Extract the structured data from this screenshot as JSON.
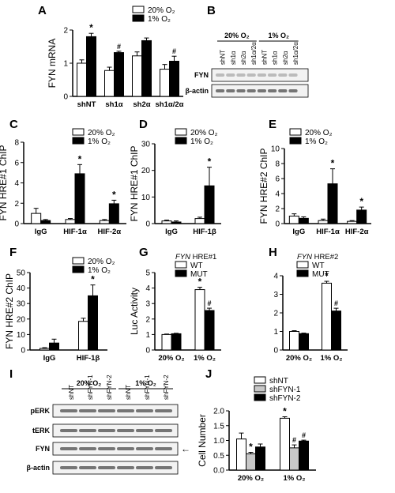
{
  "chart_data": [
    {
      "type": "bar",
      "letter": "A",
      "ylabel": "FYN mRNA",
      "ylim": [
        0,
        2
      ],
      "yticks": [
        "0",
        "1",
        "2"
      ],
      "categories": [
        "shNT",
        "sh1α",
        "sh2α",
        "sh1α/2α"
      ],
      "series": [
        {
          "name": "20% O₂",
          "values": [
            1.0,
            0.78,
            1.22,
            0.82
          ],
          "errors": [
            0.1,
            0.1,
            0.12,
            0.14
          ]
        },
        {
          "name": "1% O₂",
          "values": [
            1.8,
            1.32,
            1.68,
            1.06
          ],
          "errors": [
            0.1,
            0.04,
            0.08,
            0.15
          ]
        }
      ],
      "annotations": [
        {
          "cat": 0,
          "series": 1,
          "text": "*"
        },
        {
          "cat": 1,
          "series": 1,
          "text": "#"
        },
        {
          "cat": 3,
          "series": 1,
          "text": "#"
        }
      ],
      "legend": "top-right"
    },
    {
      "type": "bar",
      "letter": "C",
      "ylabel": "FYN HRE#1 ChIP",
      "ylim": [
        0,
        8
      ],
      "yticks": [
        "0",
        "2",
        "4",
        "6",
        "8"
      ],
      "categories": [
        "IgG",
        "HIF-1α",
        "HIF-2α"
      ],
      "series": [
        {
          "name": "20% O₂",
          "values": [
            1.0,
            0.4,
            0.3
          ],
          "errors": [
            0.5,
            0.1,
            0.1
          ]
        },
        {
          "name": "1% O₂",
          "values": [
            0.3,
            4.9,
            1.95
          ],
          "errors": [
            0.1,
            0.9,
            0.35
          ]
        }
      ],
      "annotations": [
        {
          "cat": 1,
          "series": 1,
          "text": "*"
        },
        {
          "cat": 2,
          "series": 1,
          "text": "*"
        }
      ],
      "legend": "top-right"
    },
    {
      "type": "bar",
      "letter": "D",
      "ylabel": "FYN HRE#1 ChIP",
      "ylim": [
        0,
        30
      ],
      "yticks": [
        "0",
        "10",
        "20",
        "30"
      ],
      "categories": [
        "IgG",
        "HIF-1β"
      ],
      "series": [
        {
          "name": "20% O₂",
          "values": [
            1.0,
            1.9
          ],
          "errors": [
            0.3,
            0.5
          ]
        },
        {
          "name": "1% O₂",
          "values": [
            0.6,
            14.2
          ],
          "errors": [
            0.4,
            7.0
          ]
        }
      ],
      "annotations": [
        {
          "cat": 1,
          "series": 1,
          "text": "*"
        }
      ],
      "legend": "top-right"
    },
    {
      "type": "bar",
      "letter": "E",
      "ylabel": "FYN HRE#2 ChIP",
      "ylim": [
        0,
        10
      ],
      "yticks": [
        "0",
        "2",
        "4",
        "6",
        "8",
        "10"
      ],
      "categories": [
        "IgG",
        "HIF-1α",
        "HIF-2α"
      ],
      "series": [
        {
          "name": "20% O₂",
          "values": [
            1.0,
            0.4,
            0.3
          ],
          "errors": [
            0.3,
            0.2,
            0.1
          ]
        },
        {
          "name": "1% O₂",
          "values": [
            0.7,
            5.3,
            1.8
          ],
          "errors": [
            0.2,
            2.0,
            0.4
          ]
        }
      ],
      "annotations": [
        {
          "cat": 1,
          "series": 1,
          "text": "*"
        },
        {
          "cat": 2,
          "series": 1,
          "text": "*"
        }
      ],
      "legend": "top-right"
    },
    {
      "type": "bar",
      "letter": "F",
      "ylabel": "FYN HRE#2 ChIP",
      "ylim": [
        0,
        50
      ],
      "yticks": [
        "0",
        "10",
        "20",
        "30",
        "40",
        "50"
      ],
      "categories": [
        "IgG",
        "HIF-1β"
      ],
      "series": [
        {
          "name": "20% O₂",
          "values": [
            1.0,
            18.5
          ],
          "errors": [
            0.5,
            2.0
          ]
        },
        {
          "name": "1% O₂",
          "values": [
            4.5,
            35.0
          ],
          "errors": [
            2.5,
            7.0
          ]
        }
      ],
      "annotations": [
        {
          "cat": 1,
          "series": 1,
          "text": "*"
        }
      ],
      "legend": "top-right"
    },
    {
      "type": "bar",
      "letter": "G",
      "ylabel": "Luc Activity",
      "legend_title_italic": "FYN",
      "legend_title_rest": " HRE#1",
      "ylim": [
        0,
        5
      ],
      "yticks": [
        "0",
        "1",
        "2",
        "3",
        "4",
        "5"
      ],
      "categories": [
        "20% O₂",
        "1% O₂"
      ],
      "series": [
        {
          "name": "WT",
          "values": [
            1.0,
            3.9
          ],
          "errors": [
            0.03,
            0.15
          ]
        },
        {
          "name": "MUT",
          "values": [
            1.05,
            2.55
          ],
          "errors": [
            0.03,
            0.15
          ]
        }
      ],
      "annotations": [
        {
          "cat": 1,
          "series": 0,
          "text": "*"
        },
        {
          "cat": 1,
          "series": 1,
          "text": "#"
        }
      ],
      "legend": "top-right"
    },
    {
      "type": "bar",
      "letter": "H",
      "ylabel": "",
      "legend_title_italic": "FYN",
      "legend_title_rest": " HRE#2",
      "ylim": [
        0,
        4
      ],
      "yticks": [
        "0",
        "1",
        "2",
        "3",
        "4"
      ],
      "categories": [
        "20% O₂",
        "1% O₂"
      ],
      "series": [
        {
          "name": "WT",
          "values": [
            1.0,
            3.6
          ],
          "errors": [
            0.04,
            0.1
          ]
        },
        {
          "name": "MUT",
          "values": [
            0.88,
            2.1
          ],
          "errors": [
            0.03,
            0.15
          ]
        }
      ],
      "annotations": [
        {
          "cat": 1,
          "series": 0,
          "text": "*"
        },
        {
          "cat": 1,
          "series": 1,
          "text": "#"
        }
      ],
      "legend": "top-right"
    },
    {
      "type": "bar",
      "letter": "J",
      "ylabel": "Cell Number",
      "ylim": [
        0,
        2
      ],
      "yticks": [
        "0.0",
        "0.5",
        "1.0",
        "1.5",
        "2.0"
      ],
      "categories": [
        "20% O₂",
        "1% O₂"
      ],
      "series": [
        {
          "name": "shNT",
          "values": [
            1.05,
            1.75
          ],
          "errors": [
            0.2,
            0.05
          ]
        },
        {
          "name": "shFYN-1",
          "values": [
            0.55,
            0.75
          ],
          "errors": [
            0.05,
            0.1
          ]
        },
        {
          "name": "shFYN-2",
          "values": [
            0.78,
            0.98
          ],
          "errors": [
            0.1,
            0.03
          ]
        }
      ],
      "annotations": [
        {
          "cat": 0,
          "series": 1,
          "text": "*"
        },
        {
          "cat": 1,
          "series": 0,
          "text": "*"
        },
        {
          "cat": 1,
          "series": 1,
          "text": "#"
        },
        {
          "cat": 1,
          "series": 2,
          "text": "#"
        }
      ],
      "legend": "top-right"
    }
  ],
  "blots": [
    {
      "letter": "B",
      "groups": [
        "20% O₂",
        "1% O₂"
      ],
      "lanes": [
        "shNT",
        "sh1α",
        "sh2α",
        "sh1α/2α",
        "shNT",
        "sh1α",
        "sh2α",
        "sh1α/2α"
      ],
      "rows": [
        "FYN",
        "β-actin"
      ]
    },
    {
      "letter": "I",
      "groups": [
        "20% O₂",
        "1% O₂"
      ],
      "lanes": [
        "shNT",
        "shFYN-1",
        "shFYN-2",
        "shNT",
        "shFYN-1",
        "shFYN-2"
      ],
      "rows": [
        "pERK",
        "tERK",
        "FYN",
        "β-actin"
      ],
      "arrow": "←"
    }
  ],
  "colors": {
    "series1": "#ffffff",
    "series2": "#000000",
    "series3_gray": "#c8c8c8",
    "blot_band": "#555555"
  }
}
